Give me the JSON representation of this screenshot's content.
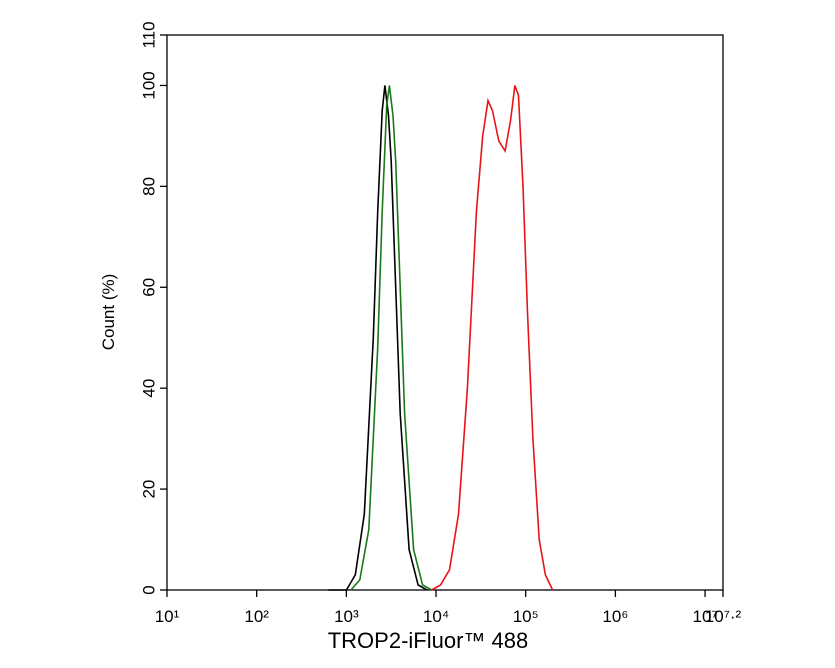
{
  "chart_data": {
    "type": "line",
    "x_scale": "log",
    "x_label": "TROP2-iFluor™ 488",
    "y_label": "Count  (%)",
    "xlim": [
      10,
      15848931.924611
    ],
    "ylim": [
      0,
      110
    ],
    "xticks": [
      {
        "value": 10,
        "label": "10¹"
      },
      {
        "value": 100,
        "label": "10²"
      },
      {
        "value": 1000,
        "label": "10³"
      },
      {
        "value": 10000,
        "label": "10⁴"
      },
      {
        "value": 100000,
        "label": "10⁵"
      },
      {
        "value": 1000000,
        "label": "10⁶"
      },
      {
        "value": 10000000,
        "label": "10⁷"
      },
      {
        "value": 15848931.924611,
        "label": "10⁷·²"
      }
    ],
    "yticks": [
      0,
      20,
      40,
      60,
      80,
      100,
      110
    ],
    "series": [
      {
        "color": "#000000",
        "x": [
          631,
          1000,
          1259,
          1585,
          1995,
          2239,
          2512,
          2692,
          2951,
          3162,
          3548,
          3981,
          5012,
          6310,
          7943
        ],
        "values": [
          0,
          0,
          3,
          15,
          50,
          75,
          95,
          100,
          94,
          85,
          60,
          35,
          8,
          1,
          0
        ]
      },
      {
        "color": "#1a7a1a",
        "x": [
          1122,
          1413,
          1778,
          2239,
          2512,
          2818,
          3020,
          3311,
          3548,
          3981,
          4467,
          5623,
          7079,
          8913
        ],
        "values": [
          0,
          2,
          12,
          48,
          75,
          96,
          100,
          94,
          85,
          60,
          35,
          8,
          1,
          0
        ]
      },
      {
        "color": "#e8141a",
        "x": [
          8913,
          11220,
          14125,
          17783,
          22387,
          28184,
          33113,
          38019,
          42658,
          50119,
          58884,
          67608,
          75858,
          83176,
          93325,
          104713,
          120226,
          141254,
          165959,
          199526
        ],
        "values": [
          0,
          1,
          4,
          15,
          40,
          75,
          90,
          97,
          95,
          89,
          87,
          93,
          100,
          98,
          80,
          55,
          30,
          10,
          3,
          0
        ]
      }
    ]
  }
}
